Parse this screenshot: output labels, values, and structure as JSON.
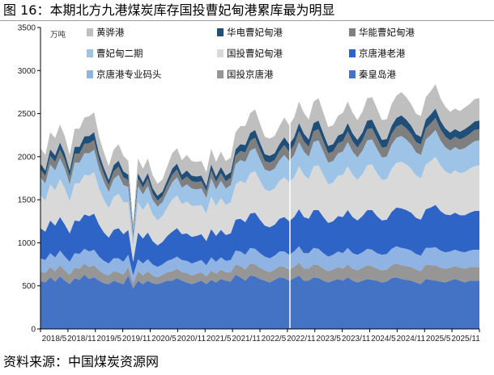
{
  "figure_title": "图 16：本期北方九港煤炭库存国投曹妃甸港累库最为明显",
  "source": "资料来源：中国煤炭资源网",
  "chart_data": {
    "type": "area",
    "stacked": true,
    "unit_label": "万吨",
    "ylim": [
      0,
      3500
    ],
    "yticks": [
      0,
      500,
      1000,
      1500,
      2000,
      2500,
      3000,
      3500
    ],
    "xlabels": [
      "2018/5",
      "2018/11",
      "2019/5",
      "2019/11",
      "2020/5",
      "2020/11",
      "2021/5",
      "2021/11",
      "2022/5",
      "2022/11",
      "2023/5",
      "2023/11",
      "2024/5",
      "2024/11",
      "2025/5",
      "2025/11"
    ],
    "legend_position": "top, inside plot, 3 columns",
    "grid": false,
    "series": [
      {
        "name": "秦皇岛港",
        "color": "#4472c4",
        "values": [
          560,
          540,
          600,
          550,
          610,
          560,
          520,
          590,
          570,
          630,
          580,
          600,
          560,
          530,
          520,
          560,
          540,
          520,
          620,
          470,
          560,
          520,
          560,
          530,
          520,
          540,
          560,
          560,
          590,
          560,
          540,
          520,
          540,
          560,
          520,
          570,
          540,
          580,
          560,
          550,
          630,
          600,
          560,
          620,
          610,
          580,
          560,
          540,
          570,
          600,
          590,
          560,
          590,
          620,
          560,
          560,
          600,
          590,
          560,
          540,
          560,
          580,
          560,
          600,
          560,
          540,
          560,
          580,
          570,
          560,
          540,
          550,
          590,
          600,
          580,
          570,
          560,
          540,
          520,
          580,
          570,
          560,
          550,
          540,
          560,
          580,
          560,
          540,
          560,
          560,
          560
        ]
      },
      {
        "name": "国投京唐港",
        "color": "#969696",
        "values": [
          110,
          110,
          120,
          120,
          130,
          120,
          110,
          120,
          130,
          130,
          140,
          140,
          120,
          110,
          100,
          110,
          120,
          110,
          100,
          60,
          110,
          100,
          110,
          90,
          80,
          90,
          100,
          110,
          110,
          100,
          110,
          100,
          100,
          100,
          90,
          110,
          100,
          110,
          100,
          110,
          120,
          130,
          130,
          140,
          140,
          130,
          120,
          120,
          120,
          130,
          130,
          130,
          130,
          150,
          140,
          140,
          150,
          150,
          140,
          130,
          130,
          140,
          140,
          150,
          140,
          140,
          150,
          160,
          160,
          140,
          140,
          140,
          150,
          160,
          160,
          160,
          160,
          150,
          150,
          170,
          170,
          180,
          160,
          160,
          150,
          150,
          150,
          160,
          160,
          160,
          160
        ]
      },
      {
        "name": "京唐港专业码头",
        "color": "#8fb4e3",
        "values": [
          150,
          150,
          160,
          160,
          170,
          160,
          150,
          170,
          170,
          170,
          180,
          180,
          160,
          150,
          140,
          150,
          160,
          150,
          140,
          90,
          140,
          140,
          140,
          130,
          120,
          120,
          130,
          140,
          140,
          140,
          140,
          140,
          140,
          140,
          130,
          150,
          140,
          140,
          130,
          140,
          160,
          170,
          170,
          180,
          180,
          170,
          160,
          160,
          160,
          170,
          180,
          170,
          180,
          190,
          180,
          180,
          190,
          190,
          180,
          170,
          170,
          180,
          180,
          190,
          180,
          180,
          180,
          190,
          190,
          180,
          180,
          180,
          190,
          200,
          200,
          200,
          190,
          180,
          180,
          190,
          200,
          210,
          200,
          190,
          190,
          190,
          190,
          190,
          190,
          200,
          200
        ]
      },
      {
        "name": "京唐港老港",
        "color": "#2e64c6",
        "values": [
          350,
          330,
          380,
          370,
          390,
          370,
          330,
          380,
          380,
          400,
          410,
          420,
          370,
          330,
          300,
          330,
          350,
          320,
          290,
          160,
          310,
          290,
          310,
          270,
          250,
          260,
          290,
          320,
          330,
          300,
          320,
          310,
          300,
          300,
          280,
          330,
          300,
          320,
          300,
          310,
          360,
          380,
          380,
          400,
          420,
          390,
          360,
          360,
          360,
          380,
          400,
          390,
          400,
          430,
          420,
          400,
          440,
          450,
          420,
          390,
          390,
          410,
          420,
          440,
          420,
          400,
          420,
          450,
          460,
          430,
          400,
          400,
          430,
          450,
          460,
          450,
          440,
          420,
          420,
          450,
          470,
          490,
          460,
          440,
          420,
          430,
          420,
          430,
          440,
          450,
          450
        ]
      },
      {
        "name": "国投曹妃甸港",
        "color": "#d9d9d9",
        "values": [
          380,
          360,
          420,
          410,
          440,
          420,
          370,
          430,
          440,
          460,
          470,
          480,
          420,
          380,
          340,
          380,
          400,
          370,
          320,
          180,
          350,
          330,
          350,
          310,
          290,
          300,
          330,
          370,
          380,
          350,
          370,
          360,
          350,
          340,
          320,
          380,
          350,
          370,
          350,
          360,
          410,
          440,
          450,
          470,
          480,
          450,
          420,
          420,
          420,
          440,
          460,
          450,
          460,
          500,
          490,
          460,
          510,
          520,
          490,
          450,
          450,
          470,
          490,
          510,
          490,
          470,
          490,
          520,
          530,
          500,
          470,
          470,
          500,
          520,
          540,
          530,
          510,
          490,
          480,
          520,
          540,
          560,
          530,
          500,
          480,
          490,
          490,
          500,
          510,
          520,
          530
        ]
      },
      {
        "name": "曹妃甸二期",
        "color": "#9dc3e6",
        "values": [
          210,
          200,
          230,
          230,
          240,
          230,
          200,
          240,
          240,
          250,
          260,
          260,
          230,
          210,
          190,
          210,
          220,
          200,
          180,
          100,
          190,
          180,
          190,
          170,
          160,
          160,
          180,
          200,
          210,
          190,
          200,
          200,
          190,
          190,
          180,
          210,
          190,
          200,
          190,
          200,
          230,
          240,
          250,
          260,
          270,
          250,
          230,
          230,
          230,
          240,
          260,
          250,
          260,
          280,
          270,
          260,
          280,
          290,
          270,
          250,
          250,
          260,
          270,
          280,
          270,
          260,
          270,
          290,
          290,
          280,
          260,
          260,
          280,
          290,
          300,
          290,
          280,
          270,
          270,
          290,
          300,
          310,
          290,
          280,
          270,
          270,
          270,
          280,
          280,
          290,
          290
        ]
      },
      {
        "name": "华能曹妃甸港",
        "color": "#7f7f7f",
        "values": [
          90,
          85,
          100,
          100,
          105,
          100,
          90,
          105,
          105,
          110,
          115,
          115,
          100,
          90,
          80,
          90,
          95,
          90,
          80,
          45,
          85,
          80,
          85,
          75,
          70,
          70,
          80,
          90,
          90,
          85,
          90,
          85,
          85,
          85,
          80,
          90,
          85,
          90,
          85,
          85,
          100,
          105,
          110,
          115,
          120,
          110,
          100,
          100,
          100,
          105,
          115,
          110,
          115,
          125,
          120,
          115,
          125,
          130,
          120,
          110,
          110,
          115,
          120,
          125,
          120,
          115,
          120,
          130,
          130,
          125,
          115,
          115,
          125,
          130,
          135,
          130,
          125,
          120,
          120,
          130,
          135,
          140,
          130,
          125,
          120,
          120,
          120,
          125,
          125,
          130,
          130
        ]
      },
      {
        "name": "华电曹妃甸港",
        "color": "#1f4e79",
        "values": [
          70,
          65,
          75,
          75,
          80,
          75,
          70,
          80,
          80,
          85,
          85,
          90,
          75,
          70,
          60,
          70,
          70,
          70,
          60,
          35,
          65,
          60,
          65,
          60,
          55,
          55,
          60,
          70,
          70,
          65,
          70,
          65,
          65,
          65,
          60,
          70,
          65,
          70,
          65,
          65,
          75,
          80,
          85,
          90,
          90,
          85,
          80,
          80,
          80,
          80,
          90,
          85,
          90,
          95,
          90,
          85,
          95,
          100,
          90,
          85,
          85,
          90,
          90,
          95,
          90,
          90,
          90,
          100,
          100,
          95,
          90,
          90,
          95,
          100,
          105,
          100,
          95,
          90,
          90,
          100,
          105,
          110,
          100,
          95,
          90,
          90,
          90,
          95,
          95,
          100,
          100
        ]
      },
      {
        "name": "黄骅港",
        "color": "#bfbfbf",
        "values": [
          180,
          180,
          200,
          200,
          210,
          200,
          180,
          210,
          210,
          220,
          230,
          230,
          200,
          180,
          160,
          180,
          190,
          180,
          160,
          90,
          170,
          160,
          170,
          150,
          140,
          140,
          160,
          180,
          180,
          170,
          180,
          170,
          170,
          170,
          160,
          180,
          170,
          180,
          170,
          170,
          200,
          210,
          220,
          230,
          240,
          220,
          200,
          200,
          200,
          210,
          230,
          220,
          230,
          250,
          240,
          230,
          250,
          260,
          240,
          220,
          220,
          230,
          240,
          250,
          240,
          230,
          240,
          260,
          260,
          250,
          230,
          230,
          250,
          260,
          270,
          260,
          250,
          240,
          240,
          260,
          270,
          280,
          260,
          250,
          240,
          240,
          240,
          250,
          250,
          260,
          260
        ]
      }
    ]
  }
}
